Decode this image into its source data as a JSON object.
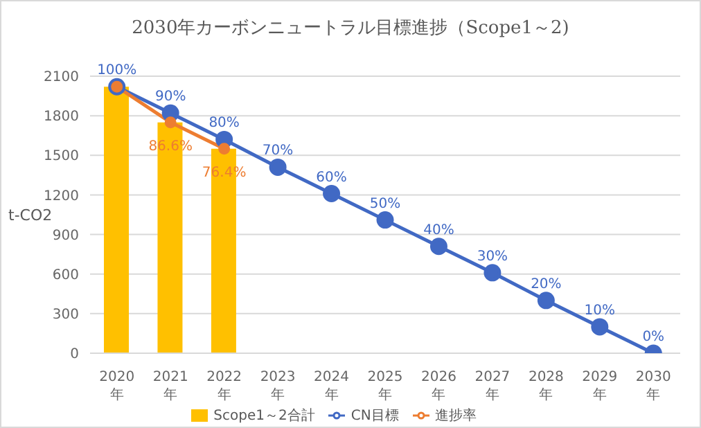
{
  "chart_data": {
    "type": "bar",
    "title": "2030年カーボンニュートラル目標進捗（Scope1～2)",
    "ylabel": "t-CO2",
    "categories": [
      "2020年",
      "2021年",
      "2022年",
      "2023年",
      "2024年",
      "2025年",
      "2026年",
      "2027年",
      "2028年",
      "2029年",
      "2030年"
    ],
    "series": [
      {
        "name": "Scope1～2合計",
        "color": "#ffc000",
        "values": [
          2020,
          1750,
          1550,
          null,
          null,
          null,
          null,
          null,
          null,
          null,
          null
        ]
      },
      {
        "name": "CN目標",
        "type": "line",
        "color": "#4169c4",
        "values": [
          2020,
          1820,
          1620,
          1410,
          1210,
          1010,
          810,
          610,
          400,
          200,
          0
        ]
      },
      {
        "name": "進捗率",
        "type": "line",
        "color": "#ed7d31",
        "values": [
          2020,
          1750,
          1550,
          null,
          null,
          null,
          null,
          null,
          null,
          null,
          null
        ]
      }
    ],
    "annotations": [
      {
        "text": "100%",
        "x": "2020年",
        "y": 2020
      },
      {
        "text": "90%",
        "x": "2021年",
        "y": 1820
      },
      {
        "text": "80%",
        "x": "2022年",
        "y": 1620
      },
      {
        "text": "70%",
        "x": "2023年",
        "y": 1410
      },
      {
        "text": "60%",
        "x": "2024年",
        "y": 1210
      },
      {
        "text": "50%",
        "x": "2025年",
        "y": 1010
      },
      {
        "text": "40%",
        "x": "2026年",
        "y": 810
      },
      {
        "text": "30%",
        "x": "2027年",
        "y": 610
      },
      {
        "text": "20%",
        "x": "2028年",
        "y": 400
      },
      {
        "text": "10%",
        "x": "2029年",
        "y": 200
      },
      {
        "text": "0%",
        "x": "2030年",
        "y": 0
      },
      {
        "text": "86.6%",
        "x": "2021年",
        "y": 1750
      },
      {
        "text": "76.4%",
        "x": "2022年",
        "y": 1550
      }
    ],
    "ylim": [
      0,
      2100
    ],
    "yticks": [
      0,
      300,
      600,
      900,
      1200,
      1500,
      1800,
      2100
    ],
    "grid": "y",
    "legend": "bottom",
    "marker": "circle"
  }
}
